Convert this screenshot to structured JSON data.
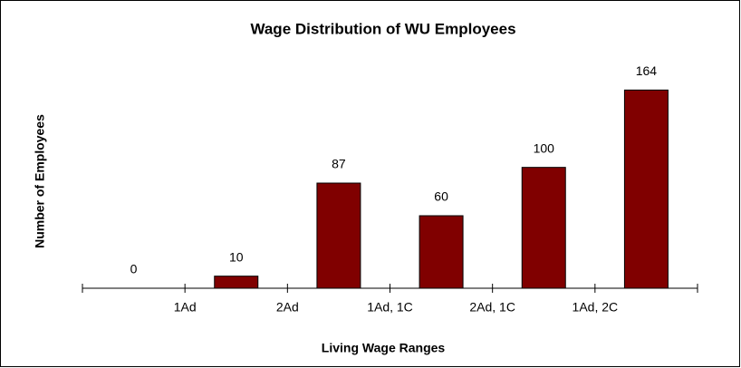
{
  "chart_data": {
    "type": "bar",
    "title": "Wage Distribution of WU Employees",
    "x_label": "Living Wage Ranges",
    "y_label": "Number of Employees",
    "categories": [
      null,
      "1Ad",
      "2Ad",
      "1Ad, 1C",
      "2Ad, 1C",
      "1Ad, 2C"
    ],
    "values": [
      0,
      10,
      87,
      60,
      100,
      164
    ],
    "color": "#800000",
    "ylim": [
      0,
      180
    ],
    "grid": false
  }
}
